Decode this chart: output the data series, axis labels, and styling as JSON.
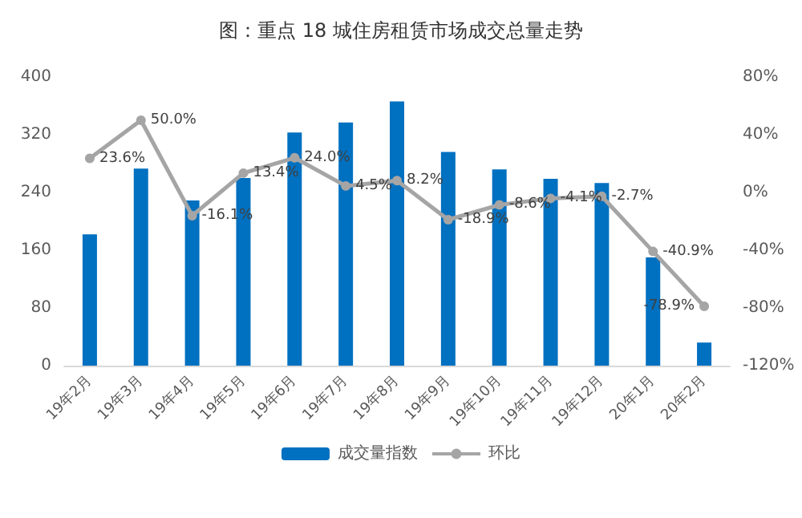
{
  "chart_data": {
    "type": "bar",
    "title": "图：重点 18 城住房租赁市场成交总量走势",
    "categories": [
      "19年2月",
      "19年3月",
      "19年4月",
      "19年5月",
      "19年6月",
      "19年7月",
      "19年8月",
      "19年9月",
      "19年10月",
      "19年11月",
      "19年12月",
      "20年1月",
      "20年2月"
    ],
    "series": [
      {
        "name": "成交量指数",
        "color": "#0070c0",
        "values": [
          182,
          273,
          229,
          260,
          323,
          337,
          366,
          296,
          272,
          259,
          253,
          150,
          32
        ]
      },
      {
        "name": "环比",
        "type": "line",
        "axis": "y2",
        "color": "#a5a5a5",
        "marker": "circle",
        "values": [
          23.6,
          50.0,
          -16.1,
          13.4,
          24.0,
          4.5,
          8.2,
          -18.9,
          -8.6,
          -4.1,
          -2.7,
          -40.9,
          -78.9
        ],
        "value_labels": [
          "23.6%",
          "50.0%",
          "-16.1%",
          "13.4%",
          "24.0%",
          "4.5%",
          "8.2%",
          "-18.9%",
          "-8.6%",
          "-4.1%",
          "-2.7%",
          "-40.9%",
          "-78.9%"
        ]
      }
    ],
    "ylim": [
      0,
      400
    ],
    "yticks": [
      0,
      80,
      160,
      240,
      320,
      400
    ],
    "y2lim": [
      -120,
      80
    ],
    "y2ticks": [
      {
        "value": -120,
        "label": "-120%"
      },
      {
        "value": -80,
        "label": "-80%"
      },
      {
        "value": -40,
        "label": "-40%"
      },
      {
        "value": 0,
        "label": "0%"
      },
      {
        "value": 40,
        "label": "40%"
      },
      {
        "value": 80,
        "label": "80%"
      }
    ],
    "grid": false,
    "legend": "bottom"
  }
}
